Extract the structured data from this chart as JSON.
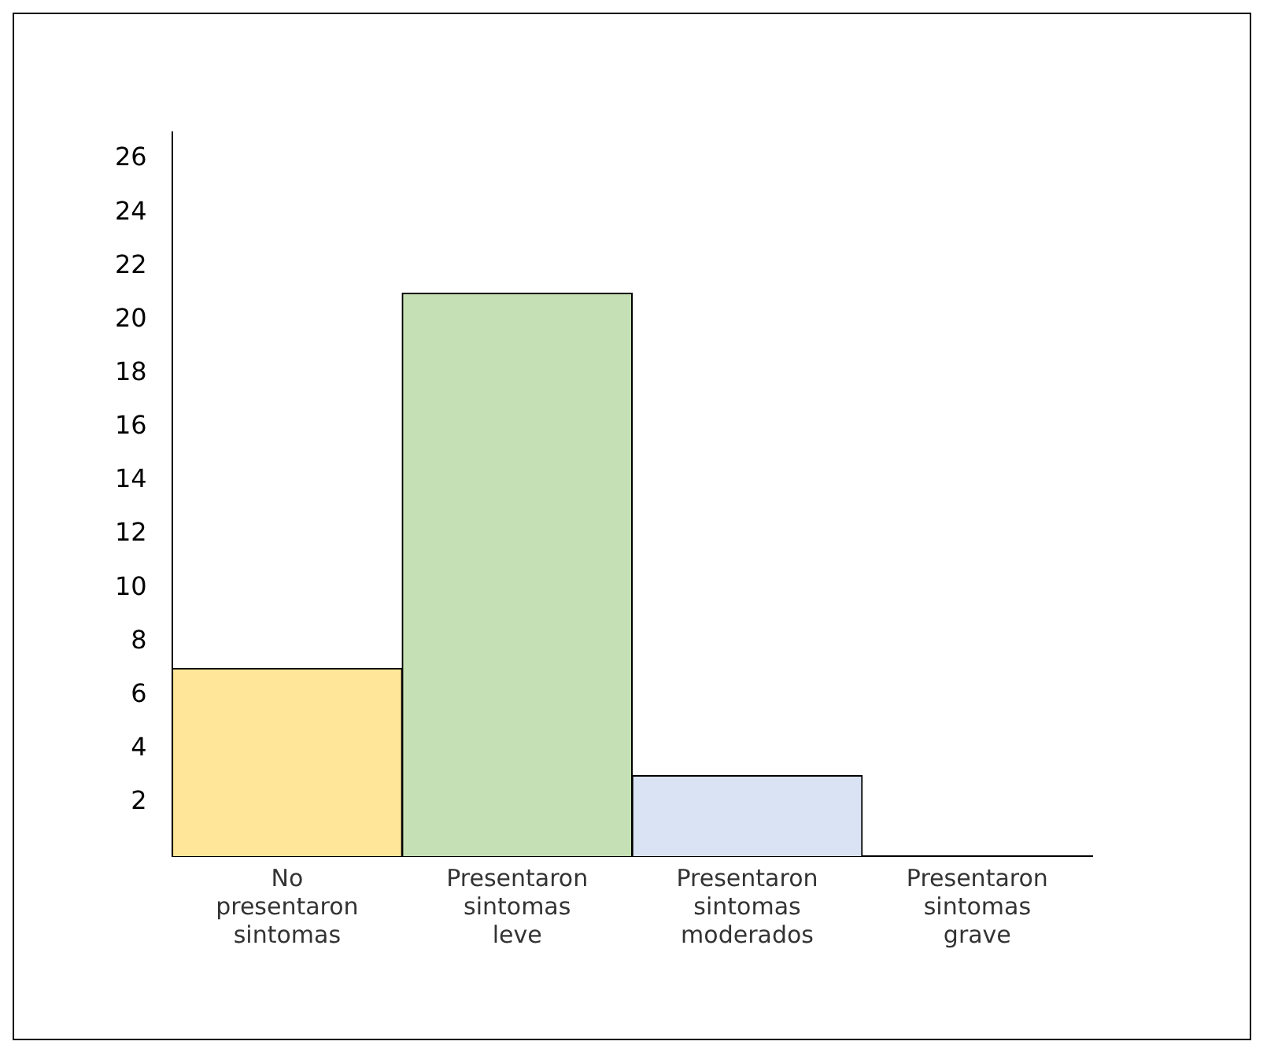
{
  "chart_data": {
    "type": "bar",
    "categories": [
      "No presentaron sintomas",
      "Presentaron sintomas leve",
      "Presentaron sintomas moderados",
      "Presentaron sintomas grave"
    ],
    "values": [
      7,
      21,
      3,
      0
    ],
    "colors": [
      "#ffe699",
      "#c5e0b4",
      "#dae3f3",
      "#f2f2f2"
    ],
    "ylim": [
      0,
      27
    ],
    "yticks": [
      2,
      4,
      6,
      8,
      10,
      12,
      14,
      16,
      18,
      20,
      22,
      24,
      26
    ],
    "grid": false,
    "legend": false
  }
}
